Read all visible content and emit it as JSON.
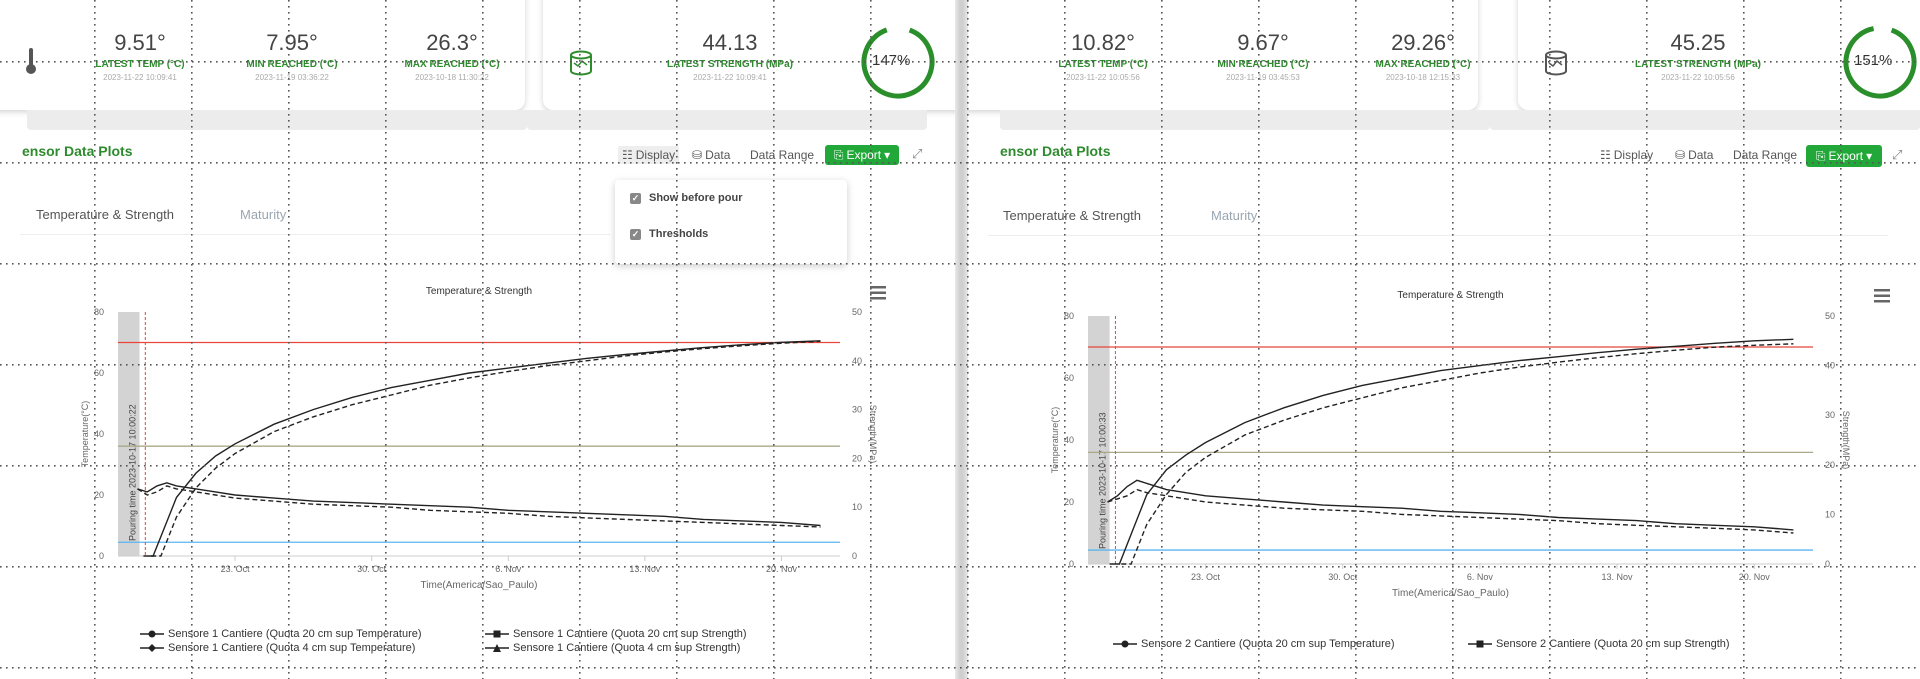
{
  "panels": [
    {
      "stats": [
        {
          "value": "9.51°",
          "label": "LATEST TEMP (°C)",
          "timestamp": "2023-11-22 10:09:41"
        },
        {
          "value": "7.95°",
          "label": "MIN REACHED (°C)",
          "timestamp": "2023-11-19 03:36:22"
        },
        {
          "value": "26.3°",
          "label": "MAX REACHED (°C)",
          "timestamp": "2023-10-18 11:30:22"
        }
      ],
      "strength": {
        "value": "44.13",
        "label": "LATEST STRENGTH (MPa)",
        "timestamp": "2023-11-22 10:09:41"
      },
      "gauge": {
        "text": "147%",
        "percent": 147
      },
      "section_title": "ensor Data Plots",
      "toolbar": {
        "display": "Display",
        "data": "Data",
        "data_range": "Data Range",
        "export": "Export"
      },
      "tabs": [
        {
          "label": "Temperature & Strength"
        },
        {
          "label": "Maturity"
        }
      ],
      "dropdown": {
        "items": [
          {
            "label": "Show before pour",
            "checked": true
          },
          {
            "label": "Thresholds",
            "checked": true
          }
        ]
      },
      "legend": [
        {
          "label": "Sensore 1 Cantiere (Quota 20 cm sup Temperature)",
          "marker": "circle"
        },
        {
          "label": "Sensore 1 Cantiere (Quota 20 cm sup Strength)",
          "marker": "square"
        },
        {
          "label": "Sensore 1 Cantiere (Quota 4 cm sup Temperature)",
          "marker": "diamond"
        },
        {
          "label": "Sensore 1 Cantiere (Quota 4 cm sup Strength)",
          "marker": "triangle"
        }
      ]
    },
    {
      "stats": [
        {
          "value": "10.82°",
          "label": "LATEST TEMP (°C)",
          "timestamp": "2023-11-22 10:05:56"
        },
        {
          "value": "9.67°",
          "label": "MIN REACHED (°C)",
          "timestamp": "2023-11-19 03:45:53"
        },
        {
          "value": "29.26°",
          "label": "MAX REACHED (°C)",
          "timestamp": "2023-10-18 12:15:33"
        }
      ],
      "strength": {
        "value": "45.25",
        "label": "LATEST STRENGTH (MPa)",
        "timestamp": "2023-11-22 10:05:56"
      },
      "gauge": {
        "text": "151%",
        "percent": 151
      },
      "section_title": "ensor Data Plots",
      "toolbar": {
        "display": "Display",
        "data": "Data",
        "data_range": "Data Range",
        "export": "Export"
      },
      "tabs": [
        {
          "label": "Temperature & Strength"
        },
        {
          "label": "Maturity"
        }
      ],
      "legend": [
        {
          "label": "Sensore 2 Cantiere (Quota 20 cm sup Temperature)",
          "marker": "circle"
        },
        {
          "label": "Sensore 2 Cantiere (Quota 20 cm sup Strength)",
          "marker": "square"
        }
      ]
    }
  ],
  "chart_data": [
    {
      "type": "line",
      "title": "Temperature & Strength",
      "xlabel": "Time(America/Sao_Paulo)",
      "ylabel": "Temperature(°C)",
      "y2label": "Strength(MPa)",
      "x_ticks": [
        "23. Oct",
        "30. Oct",
        "6. Nov",
        "13. Nov",
        "20. Nov"
      ],
      "x_range_days": [
        0,
        37
      ],
      "ylim": [
        0,
        80
      ],
      "y_ticks": [
        0,
        20,
        40,
        60,
        80
      ],
      "y2lim": [
        0,
        50
      ],
      "y2_ticks": [
        0,
        10,
        20,
        30,
        40,
        50
      ],
      "plot_band": {
        "label": "Pouring time 2023-10-17 10:00:22",
        "start": 0,
        "end": 1.1
      },
      "pour_line": 1.4,
      "thresholds": [
        {
          "axis": "y",
          "value": 70,
          "color": "#e8453c"
        },
        {
          "axis": "y",
          "value": 36,
          "color": "#a9a98a"
        },
        {
          "axis": "y",
          "value": 4.5,
          "color": "#5bb4f2"
        }
      ],
      "series": [
        {
          "name": "Sensore 1 Cantiere (Quota 20 cm sup Temperature)",
          "axis": "y",
          "style": "solid",
          "x": [
            1,
            1.5,
            2,
            2.5,
            3,
            4,
            5,
            6,
            8,
            10,
            12,
            14,
            16,
            18,
            20,
            22,
            24,
            26,
            28,
            30,
            32,
            34,
            36
          ],
          "y": [
            22,
            21,
            23,
            24,
            23,
            22,
            21,
            20,
            19,
            18,
            17.5,
            17,
            16.5,
            16,
            15,
            14.5,
            14,
            13.5,
            13,
            12,
            11.5,
            11,
            10
          ]
        },
        {
          "name": "Sensore 1 Cantiere (Quota 20 cm sup Strength)",
          "axis": "y2",
          "style": "solid",
          "x": [
            1.8,
            2.5,
            3,
            4,
            5,
            6,
            8,
            10,
            12,
            14,
            16,
            18,
            20,
            22,
            24,
            26,
            28,
            30,
            32,
            34,
            36
          ],
          "y": [
            0,
            7,
            12,
            17,
            20.5,
            23,
            27,
            30,
            32.5,
            34.5,
            36,
            37.5,
            38.5,
            39.5,
            40.5,
            41.3,
            42,
            42.7,
            43.3,
            43.8,
            44.1
          ]
        },
        {
          "name": "Sensore 1 Cantiere (Quota 4 cm sup Temperature)",
          "axis": "y",
          "style": "dashed",
          "x": [
            1,
            1.5,
            2,
            2.5,
            3,
            4,
            5,
            6,
            8,
            10,
            12,
            14,
            16,
            18,
            20,
            22,
            24,
            26,
            28,
            30,
            32,
            34,
            36
          ],
          "y": [
            22,
            20,
            21,
            23,
            22,
            21,
            20,
            19,
            18,
            17,
            16.5,
            16,
            15,
            14.5,
            14,
            13,
            12.5,
            12,
            11.5,
            11,
            10.5,
            10,
            9.5
          ]
        },
        {
          "name": "Sensore 1 Cantiere (Quota 4 cm sup Strength)",
          "axis": "y2",
          "style": "dashed",
          "x": [
            2.2,
            3,
            4,
            5,
            6,
            8,
            10,
            12,
            14,
            16,
            18,
            20,
            22,
            24,
            26,
            28,
            30,
            32,
            34,
            36
          ],
          "y": [
            0,
            8,
            14,
            18,
            21,
            25.5,
            28.5,
            31,
            33,
            35,
            36.5,
            37.8,
            39,
            40,
            41,
            41.8,
            42.5,
            43.1,
            43.6,
            44
          ]
        }
      ]
    },
    {
      "type": "line",
      "title": "Temperature & Strength",
      "xlabel": "Time(America/Sao_Paulo)",
      "ylabel": "Temperature(°C)",
      "y2label": "Strength(MPa)",
      "x_ticks": [
        "23. Oct",
        "30. Oct",
        "6. Nov",
        "13. Nov",
        "20. Nov"
      ],
      "x_range_days": [
        0,
        37
      ],
      "ylim": [
        0,
        80
      ],
      "y_ticks": [
        0,
        20,
        40,
        60,
        80
      ],
      "y2lim": [
        0,
        50
      ],
      "y2_ticks": [
        0,
        10,
        20,
        30,
        40,
        50
      ],
      "plot_band": {
        "label": "Pouring time 2023-10-17 10:00:33",
        "start": 0,
        "end": 1.1
      },
      "pour_line": 1.4,
      "thresholds": [
        {
          "axis": "y",
          "value": 70,
          "color": "#e8453c"
        },
        {
          "axis": "y",
          "value": 36,
          "color": "#a9a98a"
        },
        {
          "axis": "y",
          "value": 4.5,
          "color": "#5bb4f2"
        }
      ],
      "series": [
        {
          "name": "Sensore 2 Cantiere (Quota 20 cm sup Temperature)",
          "axis": "y",
          "style": "solid",
          "x": [
            1,
            1.5,
            2,
            2.5,
            3,
            4,
            5,
            6,
            8,
            10,
            12,
            14,
            16,
            18,
            20,
            22,
            24,
            26,
            28,
            30,
            32,
            34,
            36
          ],
          "y": [
            20,
            22,
            25,
            27,
            26,
            24,
            23,
            22,
            21,
            20,
            19,
            18.5,
            18,
            17,
            16.5,
            16,
            15,
            14.5,
            14,
            13,
            12.5,
            12,
            11
          ]
        },
        {
          "name": "Sensore 2 Cantiere (Quota 20 cm sup Strength)",
          "axis": "y2",
          "style": "solid",
          "x": [
            1.6,
            2.5,
            3,
            4,
            5,
            6,
            8,
            10,
            12,
            14,
            16,
            18,
            20,
            22,
            24,
            26,
            28,
            30,
            32,
            34,
            36
          ],
          "y": [
            0,
            9,
            14,
            19,
            22,
            24.5,
            28.5,
            31.5,
            34,
            36,
            37.5,
            39,
            40,
            41,
            41.8,
            42.6,
            43.3,
            43.9,
            44.5,
            45,
            45.3
          ]
        },
        {
          "name": "Sensore 2 Cantiere (Quota 20 cm sup Temperature)",
          "axis": "y",
          "style": "dashed",
          "x": [
            1,
            1.5,
            2,
            2.5,
            3,
            4,
            5,
            6,
            8,
            10,
            12,
            14,
            16,
            18,
            20,
            22,
            24,
            26,
            28,
            30,
            32,
            34,
            36
          ],
          "y": [
            20,
            21,
            22,
            24,
            23,
            22,
            21,
            20,
            19,
            18,
            17.5,
            17,
            16,
            15.5,
            15,
            14.5,
            14,
            13,
            12.5,
            12,
            11.5,
            11,
            10
          ]
        },
        {
          "name": "Sensore 2 Cantiere (Quota 20 cm sup Strength)",
          "axis": "y2",
          "style": "dashed",
          "x": [
            2.2,
            3,
            4,
            5,
            6,
            8,
            10,
            12,
            14,
            16,
            18,
            20,
            22,
            24,
            26,
            28,
            30,
            32,
            34,
            36
          ],
          "y": [
            0,
            8,
            14,
            18.5,
            21.5,
            26,
            29,
            31.5,
            33.5,
            35.5,
            37,
            38.5,
            39.7,
            40.7,
            41.6,
            42.4,
            43.1,
            43.7,
            44.1,
            44.4
          ]
        }
      ]
    }
  ]
}
